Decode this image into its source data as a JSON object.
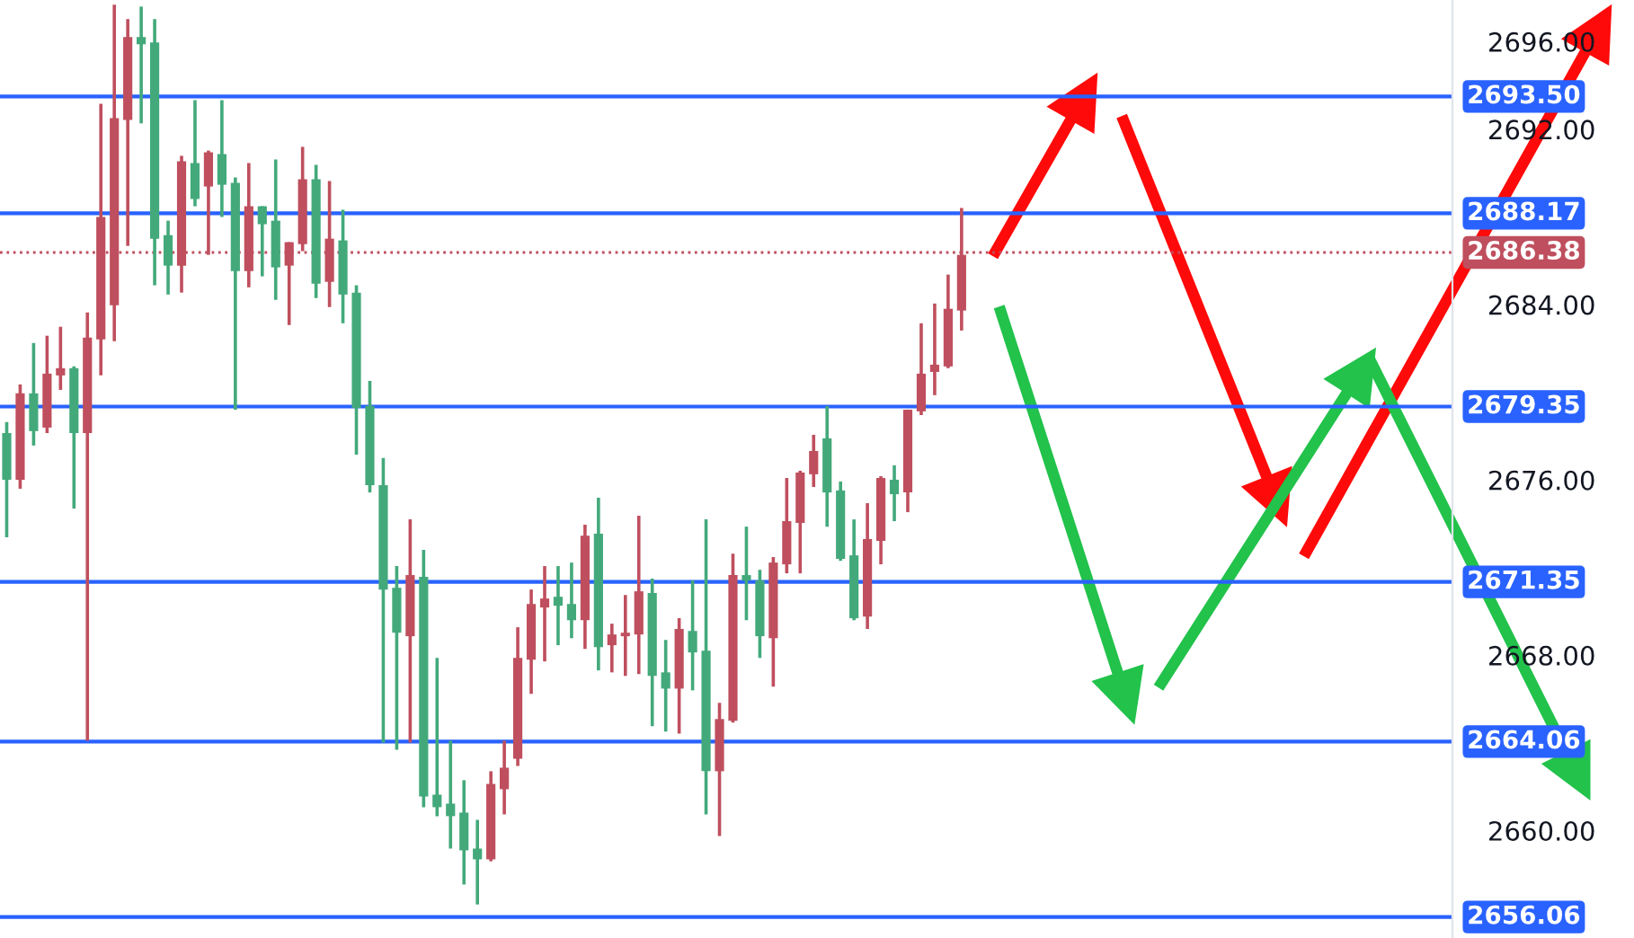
{
  "chart_data": {
    "type": "candlestick",
    "categories": [
      null,
      null,
      null,
      null,
      null,
      null,
      null,
      null,
      null,
      null,
      null,
      null,
      null,
      null,
      null,
      null,
      null,
      null,
      null,
      null,
      null,
      null,
      null,
      null,
      null,
      null,
      null,
      null,
      null,
      null,
      null,
      null,
      null,
      null,
      null,
      null,
      null,
      null,
      null,
      null,
      null,
      null,
      null,
      null,
      null,
      null,
      null,
      null,
      null,
      null,
      null,
      null,
      null,
      null,
      null,
      null,
      null,
      null,
      null,
      null,
      null,
      null,
      null,
      null,
      null,
      null,
      null,
      null,
      null,
      null,
      null,
      null,
      null,
      null,
      null,
      null,
      null,
      null,
      null,
      null,
      null,
      null,
      null,
      null,
      null,
      null,
      null,
      null,
      null,
      null,
      null,
      null,
      null,
      null,
      null,
      null,
      null,
      null,
      null,
      null,
      null,
      null,
      null,
      null,
      null,
      null,
      null,
      null
    ],
    "ohlc": [
      [
        2678.14,
        2678.64,
        2673.38,
        2676.01
      ],
      [
        2676.01,
        2680.36,
        2675.6,
        2679.95
      ],
      [
        2679.95,
        2682.25,
        2677.57,
        2678.23
      ],
      [
        2678.39,
        2682.58,
        2678.14,
        2680.85
      ],
      [
        2680.77,
        2682.99,
        2680.11,
        2681.1
      ],
      [
        2681.1,
        2681.18,
        2674.7,
        2678.14
      ],
      [
        2678.14,
        2683.64,
        2664.1,
        2682.5
      ],
      [
        2682.41,
        2693.17,
        2680.77,
        2688.0
      ],
      [
        2683.97,
        2697.68,
        2682.33,
        2692.51
      ],
      [
        2692.43,
        2697.03,
        2686.68,
        2696.21
      ],
      [
        2696.21,
        2697.6,
        2692.27,
        2695.88
      ],
      [
        2695.96,
        2697.03,
        2684.88,
        2687.01
      ],
      [
        2687.17,
        2687.83,
        2684.46,
        2685.78
      ],
      [
        2685.78,
        2690.79,
        2684.55,
        2690.54
      ],
      [
        2690.46,
        2693.33,
        2688.49,
        2688.82
      ],
      [
        2689.39,
        2691.03,
        2686.27,
        2690.95
      ],
      [
        2690.87,
        2693.33,
        2688.0,
        2689.47
      ],
      [
        2689.56,
        2689.8,
        2679.21,
        2685.53
      ],
      [
        2685.53,
        2690.46,
        2684.79,
        2688.49
      ],
      [
        2688.49,
        2688.49,
        2685.29,
        2687.67
      ],
      [
        2687.83,
        2690.62,
        2684.22,
        2685.7
      ],
      [
        2685.78,
        2686.85,
        2683.07,
        2686.85
      ],
      [
        2686.76,
        2691.2,
        2686.44,
        2689.72
      ],
      [
        2689.72,
        2690.38,
        2684.3,
        2684.96
      ],
      [
        2685.04,
        2689.64,
        2683.89,
        2687.01
      ],
      [
        2686.93,
        2688.33,
        2683.15,
        2684.46
      ],
      [
        2684.55,
        2684.88,
        2677.16,
        2679.29
      ],
      [
        2679.38,
        2680.52,
        2675.43,
        2675.76
      ],
      [
        2675.76,
        2677.0,
        2664.02,
        2671.0
      ],
      [
        2671.08,
        2672.07,
        2663.69,
        2669.03
      ],
      [
        2668.87,
        2674.2,
        2664.02,
        2671.66
      ],
      [
        2671.58,
        2672.81,
        2661.07,
        2661.56
      ],
      [
        2661.64,
        2667.88,
        2660.66,
        2661.07
      ],
      [
        2661.23,
        2664.1,
        2659.18,
        2660.66
      ],
      [
        2660.82,
        2662.3,
        2657.54,
        2659.1
      ],
      [
        2659.18,
        2660.49,
        2656.63,
        2658.69
      ],
      [
        2658.69,
        2662.71,
        2658.6,
        2662.13
      ],
      [
        2661.89,
        2664.1,
        2660.74,
        2662.87
      ],
      [
        2663.28,
        2669.28,
        2662.95,
        2667.88
      ],
      [
        2667.8,
        2671.0,
        2666.24,
        2670.34
      ],
      [
        2670.18,
        2672.07,
        2667.72,
        2670.59
      ],
      [
        2670.67,
        2672.07,
        2668.46,
        2670.26
      ],
      [
        2670.34,
        2672.23,
        2668.78,
        2669.6
      ],
      [
        2669.6,
        2673.96,
        2668.29,
        2673.46
      ],
      [
        2673.55,
        2675.19,
        2667.31,
        2668.37
      ],
      [
        2668.46,
        2669.44,
        2667.22,
        2668.95
      ],
      [
        2668.87,
        2670.75,
        2667.06,
        2669.03
      ],
      [
        2668.95,
        2674.37,
        2667.14,
        2670.92
      ],
      [
        2670.84,
        2671.5,
        2664.76,
        2667.06
      ],
      [
        2667.22,
        2668.7,
        2664.52,
        2666.48
      ],
      [
        2666.48,
        2669.69,
        2664.43,
        2669.2
      ],
      [
        2669.11,
        2671.41,
        2666.4,
        2668.13
      ],
      [
        2668.21,
        2674.2,
        2660.74,
        2662.71
      ],
      [
        2662.71,
        2665.83,
        2659.75,
        2665.09
      ],
      [
        2665.01,
        2672.64,
        2664.93,
        2671.66
      ],
      [
        2671.66,
        2673.87,
        2669.6,
        2671.41
      ],
      [
        2671.41,
        2671.9,
        2667.88,
        2668.87
      ],
      [
        2668.78,
        2672.48,
        2666.57,
        2672.23
      ],
      [
        2672.15,
        2676.09,
        2671.74,
        2674.12
      ],
      [
        2674.04,
        2676.42,
        2671.74,
        2676.34
      ],
      [
        2676.26,
        2678.06,
        2675.68,
        2677.32
      ],
      [
        2677.9,
        2679.37,
        2673.87,
        2675.43
      ],
      [
        2675.52,
        2675.93,
        2672.31,
        2672.4
      ],
      [
        2672.56,
        2674.2,
        2669.6,
        2669.69
      ],
      [
        2669.77,
        2674.94,
        2669.2,
        2673.3
      ],
      [
        2673.22,
        2676.17,
        2672.15,
        2676.09
      ],
      [
        2676.01,
        2676.67,
        2674.12,
        2675.35
      ],
      [
        2675.43,
        2679.21,
        2674.53,
        2679.21
      ],
      [
        2679.13,
        2683.15,
        2678.96,
        2680.85
      ],
      [
        2680.93,
        2684.05,
        2679.87,
        2681.26
      ],
      [
        2681.18,
        2685.37,
        2681.1,
        2683.81
      ],
      [
        2683.73,
        2688.41,
        2682.82,
        2686.27
      ],
      null,
      null,
      null,
      null,
      null,
      null,
      null,
      null,
      null,
      null,
      null,
      null,
      null,
      null,
      null,
      null,
      null,
      null,
      null,
      null,
      null,
      null,
      null,
      null,
      null,
      null,
      null,
      null,
      null,
      null,
      null,
      null,
      null,
      null,
      null,
      null
    ],
    "colors": [
      "#43a97b",
      "#bf4f5e",
      "#43a97b",
      "#bf4f5e",
      "#bf4f5e",
      "#43a97b",
      "#bf4f5e",
      "#bf4f5e",
      "#bf4f5e",
      "#bf4f5e",
      "#43a97b",
      "#43a97b",
      "#43a97b",
      "#bf4f5e",
      "#43a97b",
      "#bf4f5e",
      "#43a97b",
      "#43a97b",
      "#bf4f5e",
      "#43a97b",
      "#43a97b",
      "#bf4f5e",
      "#bf4f5e",
      "#43a97b",
      "#bf4f5e",
      "#43a97b",
      "#43a97b",
      "#43a97b",
      "#43a97b",
      "#43a97b",
      "#bf4f5e",
      "#43a97b",
      "#43a97b",
      "#43a97b",
      "#43a97b",
      "#43a97b",
      "#bf4f5e",
      "#bf4f5e",
      "#bf4f5e",
      "#bf4f5e",
      "#bf4f5e",
      "#43a97b",
      "#43a97b",
      "#bf4f5e",
      "#43a97b",
      "#bf4f5e",
      "#bf4f5e",
      "#bf4f5e",
      "#43a97b",
      "#43a97b",
      "#bf4f5e",
      "#43a97b",
      "#43a97b",
      "#bf4f5e",
      "#bf4f5e",
      "#43a97b",
      "#43a97b",
      "#bf4f5e",
      "#bf4f5e",
      "#bf4f5e",
      "#bf4f5e",
      "#43a97b",
      "#43a97b",
      "#43a97b",
      "#bf4f5e",
      "#bf4f5e",
      "#43a97b",
      "#bf4f5e",
      "#bf4f5e",
      "#bf4f5e",
      "#bf4f5e",
      "#bf4f5e",
      null,
      null,
      null,
      null,
      null,
      null,
      null,
      null,
      null,
      null,
      null,
      null,
      null,
      null,
      null,
      null,
      null,
      null,
      null,
      null,
      null,
      null,
      null,
      null,
      null,
      null,
      null,
      null,
      null,
      null,
      null,
      null,
      null,
      null,
      null,
      null
    ],
    "ylim": [
      2655.1,
      2697.9
    ],
    "yticks": [
      {
        "value": 2660,
        "label": "2660.00"
      },
      {
        "value": 2668,
        "label": "2668.00"
      },
      {
        "value": 2676,
        "label": "2676.00"
      },
      {
        "value": 2684,
        "label": "2684.00"
      },
      {
        "value": 2692,
        "label": "2692.00"
      },
      {
        "value": 2696,
        "label": "2696.00"
      }
    ],
    "tick_labels": "y",
    "ref_lines": [
      {
        "axis": "y",
        "value": 2693.5,
        "label": "2693.50",
        "color": "#2962ff"
      },
      {
        "axis": "y",
        "value": 2688.17,
        "label": "2688.17",
        "color": "#2962ff"
      },
      {
        "axis": "y",
        "value": 2686.38,
        "label": "2686.38",
        "color": "#bf4f5e",
        "line_style": "dotted"
      },
      {
        "axis": "y",
        "value": 2679.35,
        "label": "2679.35",
        "color": "#2962ff"
      },
      {
        "axis": "y",
        "value": 2671.35,
        "label": "2671.35",
        "color": "#2962ff"
      },
      {
        "axis": "y",
        "value": 2664.06,
        "label": "2664.06",
        "color": "#2962ff"
      },
      {
        "axis": "y",
        "value": 2656.06,
        "label": "2656.06",
        "color": "#2962ff"
      }
    ]
  }
}
